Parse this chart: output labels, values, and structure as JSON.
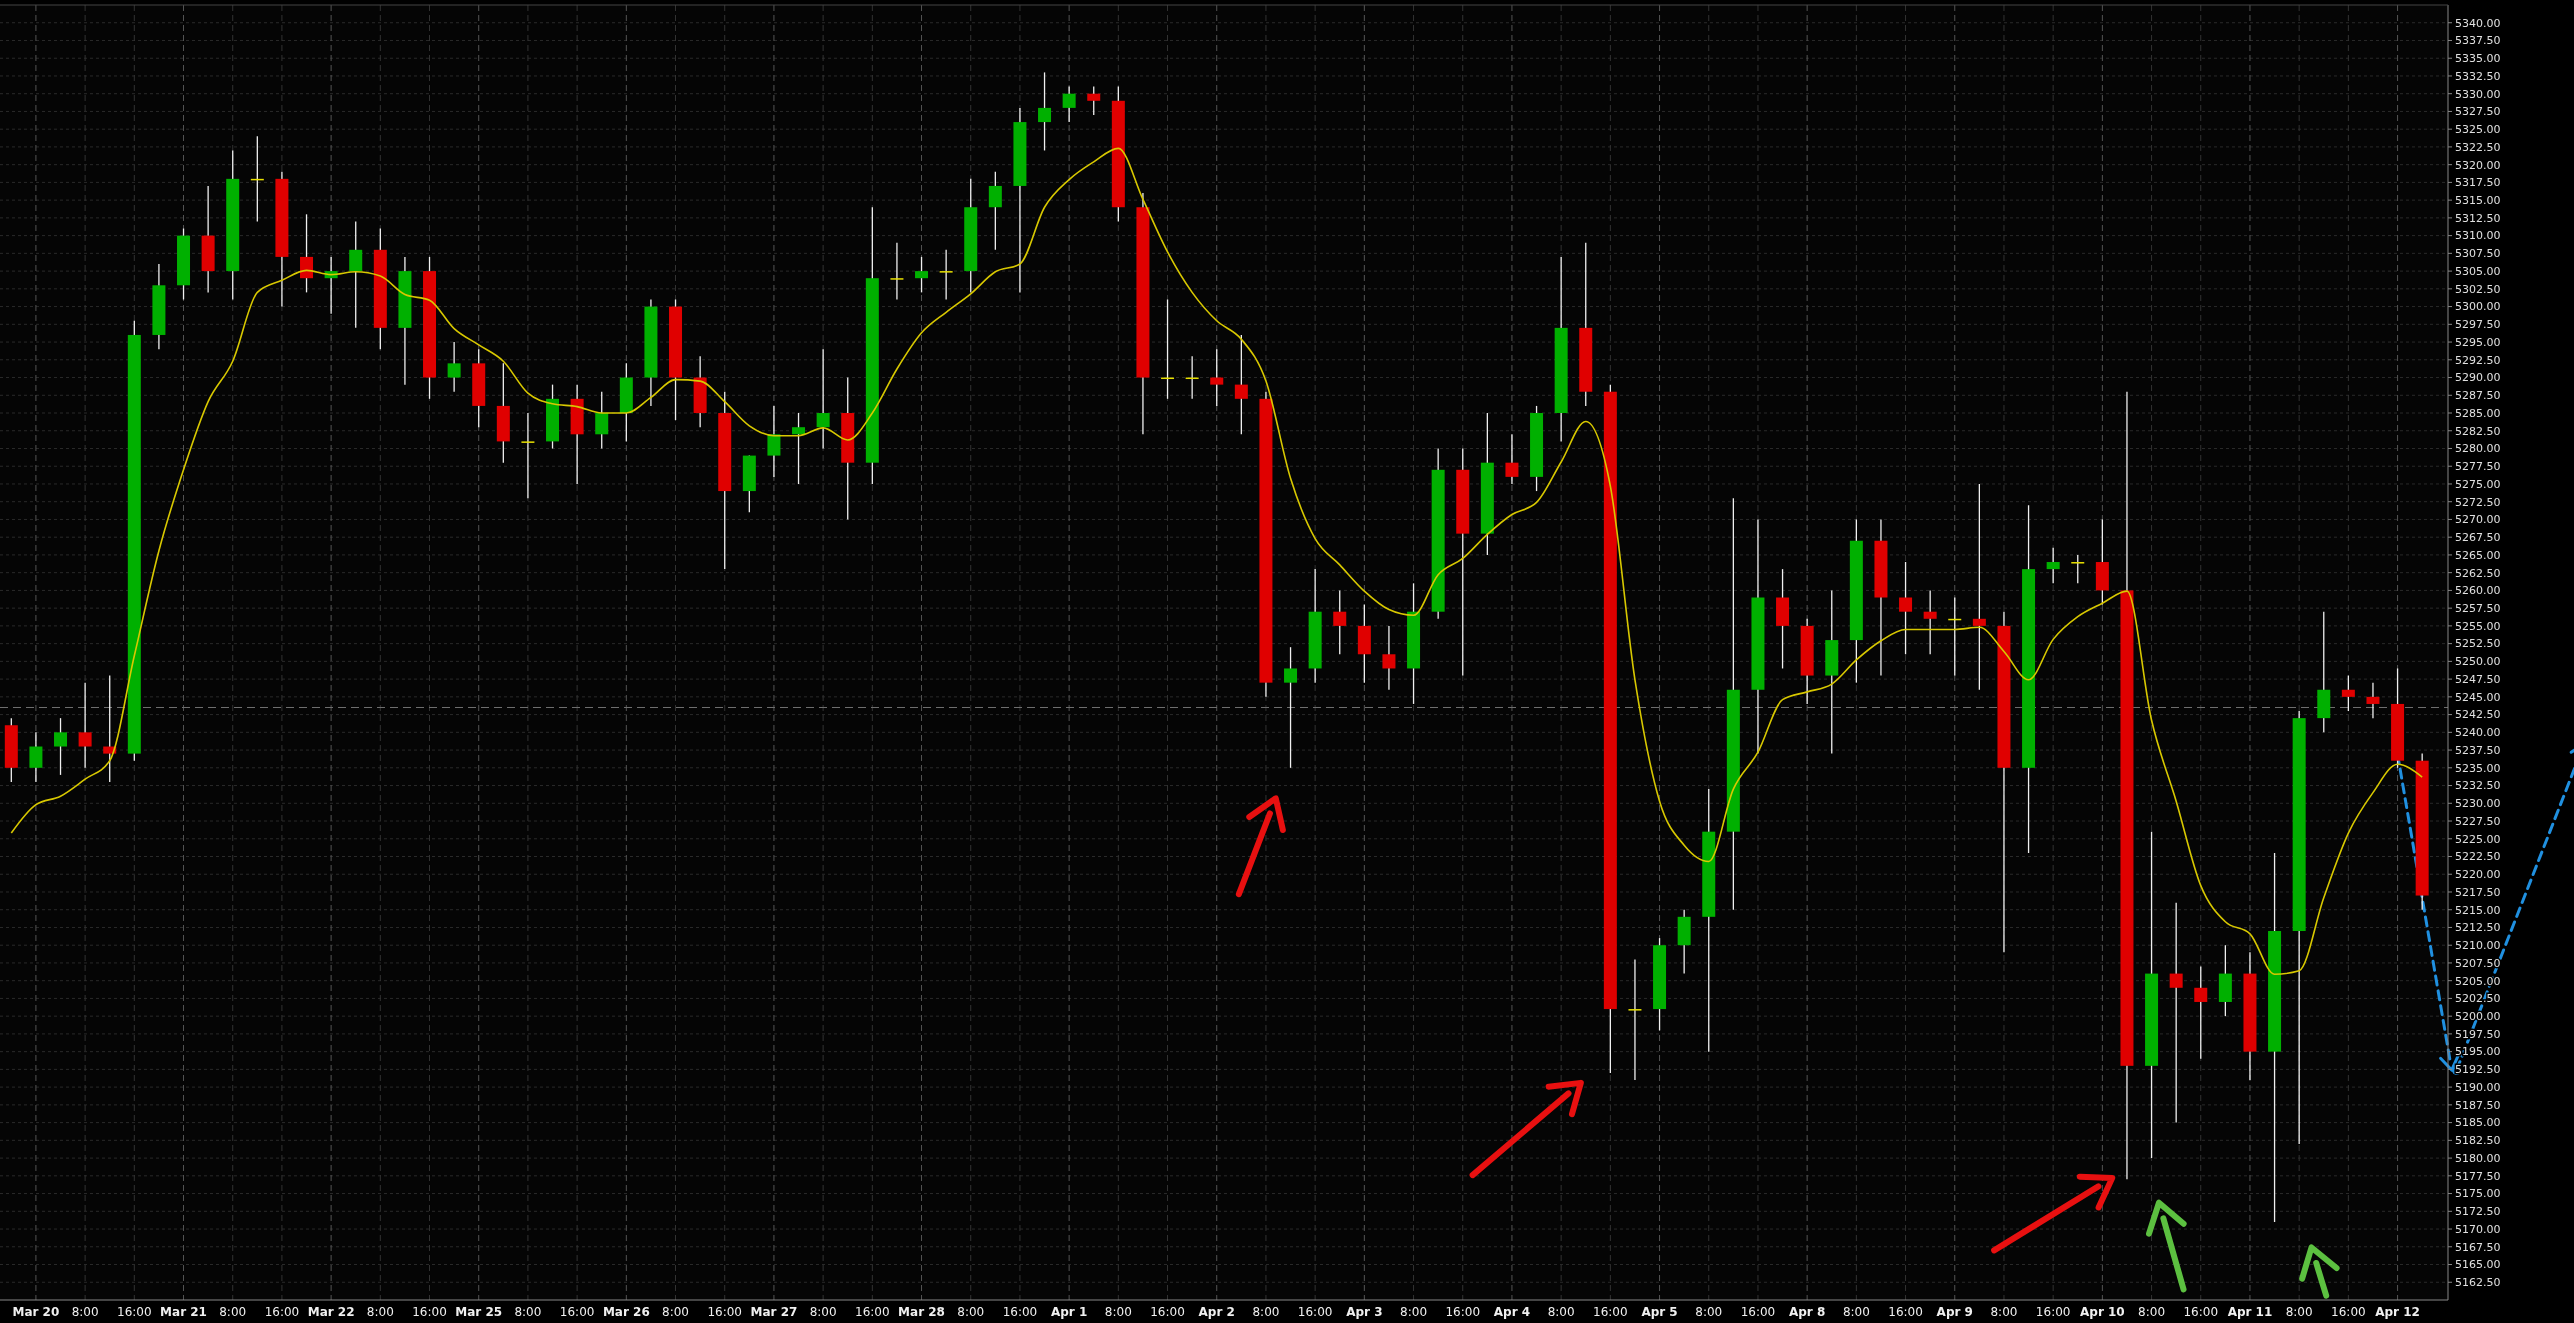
{
  "chart_data": {
    "type": "candlestick",
    "categories": [
      null,
      "Mar 20",
      null,
      "8:00",
      null,
      "16:00",
      null,
      "Mar 21",
      null,
      "8:00",
      null,
      "16:00",
      null,
      "Mar 22",
      null,
      "8:00",
      null,
      "16:00",
      null,
      "Mar 25",
      null,
      "8:00",
      null,
      "16:00",
      null,
      "Mar 26",
      null,
      "8:00",
      null,
      "16:00",
      null,
      "Mar 27",
      null,
      "8:00",
      null,
      "16:00",
      null,
      "Mar 28",
      null,
      "8:00",
      null,
      "16:00",
      null,
      "Apr 1",
      null,
      "8:00",
      null,
      "16:00",
      null,
      "Apr 2",
      null,
      "8:00",
      null,
      "16:00",
      null,
      "Apr 3",
      null,
      "8:00",
      null,
      "16:00",
      null,
      "Apr 4",
      null,
      "8:00",
      null,
      "16:00",
      null,
      "Apr 5",
      null,
      "8:00",
      null,
      "16:00",
      null,
      "Apr 8",
      null,
      "8:00",
      null,
      "16:00",
      null,
      "Apr 9",
      null,
      "8:00",
      null,
      "16:00",
      null,
      "Apr 10",
      null,
      "8:00",
      null,
      "16:00",
      null,
      "Apr 11",
      null,
      "8:00",
      null,
      "16:00",
      null,
      "Apr 12",
      null
    ],
    "ohlc": [
      [
        5241,
        5242,
        5233,
        5235
      ],
      [
        5235,
        5240,
        5233,
        5238
      ],
      [
        5238,
        5242,
        5234,
        5240
      ],
      [
        5240,
        5247,
        5235,
        5238
      ],
      [
        5238,
        5248,
        5233,
        5237
      ],
      [
        5237,
        5298,
        5236,
        5296
      ],
      [
        5296,
        5306,
        5294,
        5303
      ],
      [
        5303,
        5311,
        5301,
        5310
      ],
      [
        5310,
        5317,
        5302,
        5305
      ],
      [
        5305,
        5322,
        5301,
        5318
      ],
      [
        5318,
        5324,
        5312,
        5318
      ],
      [
        5318,
        5319,
        5300,
        5307
      ],
      [
        5307,
        5313,
        5302,
        5304
      ],
      [
        5304,
        5307,
        5299,
        5305
      ],
      [
        5305,
        5312,
        5297,
        5308
      ],
      [
        5308,
        5311,
        5294,
        5297
      ],
      [
        5297,
        5307,
        5289,
        5305
      ],
      [
        5305,
        5307,
        5287,
        5290
      ],
      [
        5290,
        5295,
        5288,
        5292
      ],
      [
        5292,
        5294,
        5283,
        5286
      ],
      [
        5286,
        5292,
        5278,
        5281
      ],
      [
        5281,
        5285,
        5273,
        5281
      ],
      [
        5281,
        5289,
        5280,
        5287
      ],
      [
        5287,
        5289,
        5275,
        5282
      ],
      [
        5282,
        5288,
        5280,
        5285
      ],
      [
        5285,
        5292,
        5281,
        5290
      ],
      [
        5290,
        5301,
        5286,
        5300
      ],
      [
        5300,
        5301,
        5284,
        5290
      ],
      [
        5290,
        5293,
        5283,
        5285
      ],
      [
        5285,
        5288,
        5263,
        5274
      ],
      [
        5274,
        5279,
        5271,
        5279
      ],
      [
        5279,
        5286,
        5276,
        5282
      ],
      [
        5282,
        5285,
        5275,
        5283
      ],
      [
        5283,
        5294,
        5280,
        5285
      ],
      [
        5285,
        5290,
        5270,
        5278
      ],
      [
        5278,
        5314,
        5275,
        5304
      ],
      [
        5304,
        5309,
        5301,
        5304
      ],
      [
        5304,
        5307,
        5302,
        5305
      ],
      [
        5305,
        5308,
        5301,
        5305
      ],
      [
        5305,
        5318,
        5302,
        5314
      ],
      [
        5314,
        5319,
        5308,
        5317
      ],
      [
        5317,
        5328,
        5302,
        5326
      ],
      [
        5326,
        5333,
        5322,
        5328
      ],
      [
        5328,
        5331,
        5326,
        5330
      ],
      [
        5330,
        5331,
        5327,
        5329
      ],
      [
        5329,
        5331,
        5312,
        5314
      ],
      [
        5314,
        5316,
        5282,
        5290
      ],
      [
        5290,
        5301,
        5287,
        5290
      ],
      [
        5290,
        5293,
        5287,
        5290
      ],
      [
        5290,
        5294,
        5286,
        5289
      ],
      [
        5289,
        5296,
        5282,
        5287
      ],
      [
        5287,
        5288,
        5245,
        5247
      ],
      [
        5247,
        5252,
        5235,
        5249
      ],
      [
        5249,
        5263,
        5247,
        5257
      ],
      [
        5257,
        5260,
        5251,
        5255
      ],
      [
        5255,
        5258,
        5247,
        5251
      ],
      [
        5251,
        5255,
        5246,
        5249
      ],
      [
        5249,
        5261,
        5244,
        5257
      ],
      [
        5257,
        5280,
        5256,
        5277
      ],
      [
        5277,
        5280,
        5248,
        5268
      ],
      [
        5268,
        5285,
        5265,
        5278
      ],
      [
        5278,
        5282,
        5275,
        5276
      ],
      [
        5276,
        5286,
        5274,
        5285
      ],
      [
        5285,
        5307,
        5281,
        5297
      ],
      [
        5297,
        5309,
        5286,
        5288
      ],
      [
        5288,
        5289,
        5192,
        5201
      ],
      [
        5201,
        5208,
        5191,
        5201
      ],
      [
        5201,
        5211,
        5198,
        5210
      ],
      [
        5210,
        5215,
        5206,
        5214
      ],
      [
        5214,
        5232,
        5195,
        5226
      ],
      [
        5226,
        5273,
        5215,
        5246
      ],
      [
        5246,
        5270,
        5237,
        5259
      ],
      [
        5259,
        5263,
        5249,
        5255
      ],
      [
        5255,
        5256,
        5244,
        5248
      ],
      [
        5248,
        5260,
        5237,
        5253
      ],
      [
        5253,
        5270,
        5247,
        5267
      ],
      [
        5267,
        5270,
        5248,
        5259
      ],
      [
        5259,
        5264,
        5251,
        5257
      ],
      [
        5257,
        5260,
        5251,
        5256
      ],
      [
        5256,
        5259,
        5248,
        5256
      ],
      [
        5256,
        5275,
        5246,
        5255
      ],
      [
        5255,
        5257,
        5209,
        5235
      ],
      [
        5235,
        5272,
        5223,
        5263
      ],
      [
        5263,
        5266,
        5261,
        5264
      ],
      [
        5264,
        5265,
        5261,
        5264
      ],
      [
        5264,
        5270,
        5258,
        5260
      ],
      [
        5260,
        5288,
        5177,
        5193
      ],
      [
        5193,
        5226,
        5180,
        5206
      ],
      [
        5206,
        5216,
        5185,
        5204
      ],
      [
        5204,
        5207,
        5194,
        5202
      ],
      [
        5202,
        5210,
        5200,
        5206
      ],
      [
        5206,
        5209,
        5191,
        5195
      ],
      [
        5195,
        5223,
        5171,
        5212
      ],
      [
        5212,
        5243,
        5182,
        5242
      ],
      [
        5242,
        5257,
        5240,
        5246
      ],
      [
        5246,
        5248,
        5243,
        5245
      ],
      [
        5245,
        5247,
        5242,
        5244
      ],
      [
        5244,
        5249,
        5235,
        5236
      ],
      [
        5236,
        5237,
        5215,
        5217
      ]
    ],
    "series": [
      {
        "type": "line",
        "color": "#d8c800",
        "values": [
          5225.8,
          5229.8,
          5231,
          5233.4,
          5236,
          5250.8,
          5265.6,
          5277,
          5286.6,
          5292.3,
          5302,
          5303.7,
          5305.1,
          5304.5,
          5304.9,
          5304.3,
          5301.7,
          5300.9,
          5296.9,
          5294.6,
          5292.3,
          5287.8,
          5286.3,
          5285.9,
          5285,
          5285,
          5287.2,
          5289.7,
          5289.5,
          5286.6,
          5283.2,
          5281.8,
          5281.8,
          5282.9,
          5281.2,
          5285,
          5291.2,
          5296.3,
          5299.2,
          5301.8,
          5304.9,
          5306,
          5314,
          5317.9,
          5320.4,
          5322.3,
          5315.1,
          5307.7,
          5302,
          5298,
          5295.4,
          5289.5,
          5275.8,
          5267.3,
          5263.6,
          5259.9,
          5257.3,
          5256.5,
          5262.2,
          5264.5,
          5267.9,
          5270.7,
          5272.4,
          5278.1,
          5283.8,
          5274.7,
          5247.4,
          5230.3,
          5224.1,
          5221.8,
          5232,
          5237.2,
          5244.6,
          5245.7,
          5246.8,
          5250.2,
          5252.9,
          5254.5,
          5254.5,
          5254.5,
          5254.8,
          5251.4,
          5247.4,
          5253.1,
          5256.3,
          5258.2,
          5259.9,
          5241.7,
          5230.3,
          5218.4,
          5213.3,
          5211.6,
          5205.9,
          5206.4,
          5216.7,
          5225.8,
          5231.5,
          5235.5,
          5233.7
        ]
      }
    ],
    "ylim": [
      5160,
      5342.5
    ],
    "yticks": [
      {
        "value": 5162.5,
        "label": "5162.50"
      },
      {
        "value": 5165,
        "label": "5165.00"
      },
      {
        "value": 5167.5,
        "label": "5167.50"
      },
      {
        "value": 5170,
        "label": "5170.00"
      },
      {
        "value": 5172.5,
        "label": "5172.50"
      },
      {
        "value": 5175,
        "label": "5175.00"
      },
      {
        "value": 5177.5,
        "label": "5177.50"
      },
      {
        "value": 5180,
        "label": "5180.00"
      },
      {
        "value": 5182.5,
        "label": "5182.50"
      },
      {
        "value": 5185,
        "label": "5185.00"
      },
      {
        "value": 5187.5,
        "label": "5187.50"
      },
      {
        "value": 5190,
        "label": "5190.00"
      },
      {
        "value": 5192.5,
        "label": "5192.50"
      },
      {
        "value": 5195,
        "label": "5195.00"
      },
      {
        "value": 5197.5,
        "label": "5197.50"
      },
      {
        "value": 5200,
        "label": "5200.00"
      },
      {
        "value": 5202.5,
        "label": "5202.50"
      },
      {
        "value": 5205,
        "label": "5205.00"
      },
      {
        "value": 5207.5,
        "label": "5207.50"
      },
      {
        "value": 5210,
        "label": "5210.00"
      },
      {
        "value": 5212.5,
        "label": "5212.50"
      },
      {
        "value": 5215,
        "label": "5215.00"
      },
      {
        "value": 5217.5,
        "label": "5217.50"
      },
      {
        "value": 5220,
        "label": "5220.00"
      },
      {
        "value": 5222.5,
        "label": "5222.50"
      },
      {
        "value": 5225,
        "label": "5225.00"
      },
      {
        "value": 5227.5,
        "label": "5227.50"
      },
      {
        "value": 5230,
        "label": "5230.00"
      },
      {
        "value": 5232.5,
        "label": "5232.50"
      },
      {
        "value": 5235,
        "label": "5235.00"
      },
      {
        "value": 5237.5,
        "label": "5237.50"
      },
      {
        "value": 5240,
        "label": "5240.00"
      },
      {
        "value": 5242.5,
        "label": "5242.50"
      },
      {
        "value": 5245,
        "label": "5245.00"
      },
      {
        "value": 5247.5,
        "label": "5247.50"
      },
      {
        "value": 5250,
        "label": "5250.00"
      },
      {
        "value": 5252.5,
        "label": "5252.50"
      },
      {
        "value": 5255,
        "label": "5255.00"
      },
      {
        "value": 5257.5,
        "label": "5257.50"
      },
      {
        "value": 5260,
        "label": "5260.00"
      },
      {
        "value": 5262.5,
        "label": "5262.50"
      },
      {
        "value": 5265,
        "label": "5265.00"
      },
      {
        "value": 5267.5,
        "label": "5267.50"
      },
      {
        "value": 5270,
        "label": "5270.00"
      },
      {
        "value": 5272.5,
        "label": "5272.50"
      },
      {
        "value": 5275,
        "label": "5275.00"
      },
      {
        "value": 5277.5,
        "label": "5277.50"
      },
      {
        "value": 5280,
        "label": "5280.00"
      },
      {
        "value": 5282.5,
        "label": "5282.50"
      },
      {
        "value": 5285,
        "label": "5285.00"
      },
      {
        "value": 5287.5,
        "label": "5287.50"
      },
      {
        "value": 5290,
        "label": "5290.00"
      },
      {
        "value": 5292.5,
        "label": "5292.50"
      },
      {
        "value": 5295,
        "label": "5295.00"
      },
      {
        "value": 5297.5,
        "label": "5297.50"
      },
      {
        "value": 5300,
        "label": "5300.00"
      },
      {
        "value": 5302.5,
        "label": "5302.50"
      },
      {
        "value": 5305,
        "label": "5305.00"
      },
      {
        "value": 5307.5,
        "label": "5307.50"
      },
      {
        "value": 5310,
        "label": "5310.00"
      },
      {
        "value": 5312.5,
        "label": "5312.50"
      },
      {
        "value": 5315,
        "label": "5315.00"
      },
      {
        "value": 5317.5,
        "label": "5317.50"
      },
      {
        "value": 5320,
        "label": "5320.00"
      },
      {
        "value": 5322.5,
        "label": "5322.50"
      },
      {
        "value": 5325,
        "label": "5325.00"
      },
      {
        "value": 5327.5,
        "label": "5327.50"
      },
      {
        "value": 5330,
        "label": "5330.00"
      },
      {
        "value": 5332.5,
        "label": "5332.50"
      },
      {
        "value": 5335,
        "label": "5335.00"
      },
      {
        "value": 5337.5,
        "label": "5337.50"
      },
      {
        "value": 5340,
        "label": "5340.00"
      }
    ],
    "ref_lines": [
      {
        "axis": "y",
        "value": 5243.5,
        "color": "#707070",
        "line_style": "dashed"
      }
    ],
    "grid": true
  }
}
